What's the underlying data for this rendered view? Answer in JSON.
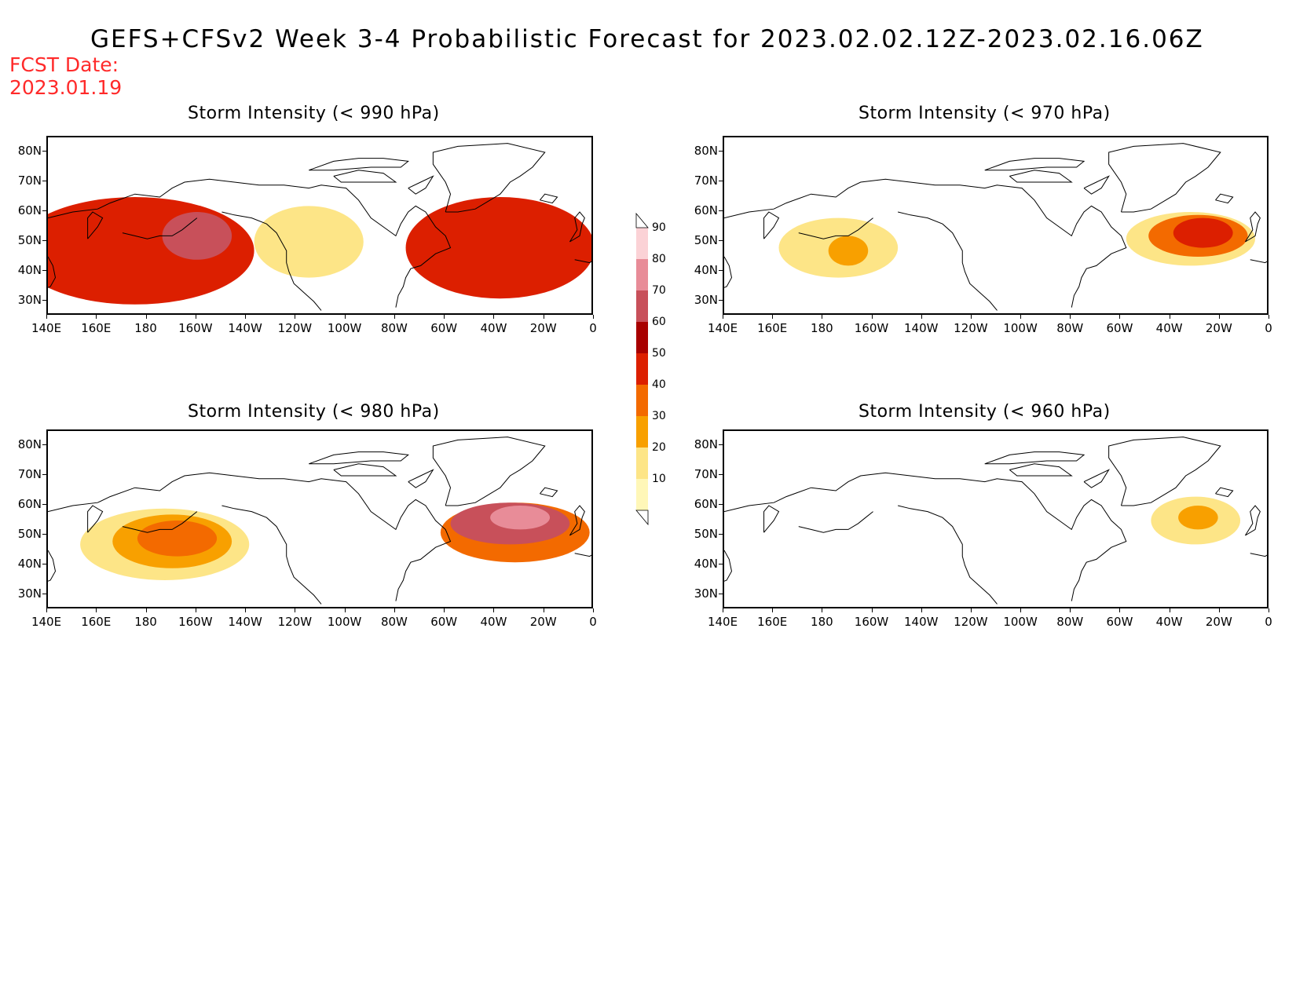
{
  "title": "GEFS+CFSv2 Week 3-4 Probabilistic Forecast for 2023.02.02.12Z-2023.02.16.06Z",
  "fcst_date_label": "FCST Date:",
  "fcst_date_value": "2023.01.19",
  "colors": {
    "fcst_date": "#ff2a2a",
    "levels": [
      "#fff7b8",
      "#fde587",
      "#f8a000",
      "#f36a00",
      "#dc1f00",
      "#a80000",
      "#c8505a",
      "#e88c98",
      "#fbd2d6"
    ]
  },
  "colorbar": {
    "labels": [
      "10",
      "20",
      "30",
      "40",
      "50",
      "60",
      "70",
      "80",
      "90"
    ]
  },
  "lat_labels": [
    "80N",
    "70N",
    "60N",
    "50N",
    "40N",
    "30N"
  ],
  "lon_labels": [
    "140E",
    "160E",
    "180",
    "160W",
    "140W",
    "120W",
    "100W",
    "80W",
    "60W",
    "40W",
    "20W",
    "0"
  ],
  "panels": [
    {
      "title": "Storm Intensity (< 990 hPa)",
      "threshold_hpa": 990,
      "blobs": [
        {
          "lon": 178,
          "lat": 49,
          "rlon": 30,
          "rlat": 10,
          "level": 8
        },
        {
          "lon": 172,
          "lat": 47,
          "rlon": 38,
          "rlat": 14,
          "level": 6
        },
        {
          "lon": 175,
          "lat": 47,
          "rlon": 48,
          "rlat": 18,
          "level": 4
        },
        {
          "lon": 200,
          "lat": 52,
          "rlon": 14,
          "rlat": 8,
          "level": 6
        },
        {
          "lon": 245,
          "lat": 50,
          "rlon": 22,
          "rlat": 12,
          "level": 1
        },
        {
          "lon": 327,
          "lat": 50,
          "rlon": 22,
          "rlat": 8,
          "level": 8
        },
        {
          "lon": 322,
          "lat": 49,
          "rlon": 32,
          "rlat": 13,
          "level": 6
        },
        {
          "lon": 322,
          "lat": 48,
          "rlon": 38,
          "rlat": 17,
          "level": 4
        }
      ]
    },
    {
      "title": "Storm Intensity (< 970 hPa)",
      "threshold_hpa": 970,
      "blobs": [
        {
          "lon": 186,
          "lat": 48,
          "rlon": 24,
          "rlat": 10,
          "level": 1
        },
        {
          "lon": 190,
          "lat": 47,
          "rlon": 8,
          "rlat": 5,
          "level": 2
        },
        {
          "lon": 328,
          "lat": 51,
          "rlon": 26,
          "rlat": 9,
          "level": 1
        },
        {
          "lon": 331,
          "lat": 52,
          "rlon": 20,
          "rlat": 7,
          "level": 3
        },
        {
          "lon": 333,
          "lat": 53,
          "rlon": 12,
          "rlat": 5,
          "level": 4
        }
      ]
    },
    {
      "title": "Storm Intensity (< 980 hPa)",
      "threshold_hpa": 980,
      "blobs": [
        {
          "lon": 187,
          "lat": 47,
          "rlon": 34,
          "rlat": 12,
          "level": 1
        },
        {
          "lon": 190,
          "lat": 48,
          "rlon": 24,
          "rlat": 9,
          "level": 2
        },
        {
          "lon": 192,
          "lat": 49,
          "rlon": 16,
          "rlat": 6,
          "level": 3
        },
        {
          "lon": 328,
          "lat": 51,
          "rlon": 30,
          "rlat": 10,
          "level": 3
        },
        {
          "lon": 326,
          "lat": 54,
          "rlon": 24,
          "rlat": 7,
          "level": 6
        },
        {
          "lon": 330,
          "lat": 56,
          "rlon": 12,
          "rlat": 4,
          "level": 7
        }
      ]
    },
    {
      "title": "Storm Intensity (< 960 hPa)",
      "threshold_hpa": 960,
      "blobs": [
        {
          "lon": 330,
          "lat": 55,
          "rlon": 18,
          "rlat": 8,
          "level": 1
        },
        {
          "lon": 331,
          "lat": 56,
          "rlon": 8,
          "rlat": 4,
          "level": 2
        }
      ]
    }
  ]
}
